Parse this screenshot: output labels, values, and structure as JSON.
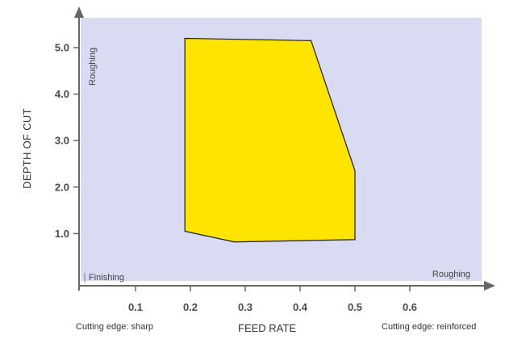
{
  "chart_data": {
    "type": "area",
    "xlabel": "FEED RATE",
    "ylabel": "DEPTH OF CUT",
    "xlim": [
      0.0,
      0.66
    ],
    "ylim": [
      0.0,
      5.6
    ],
    "x_ticks": [
      0.1,
      0.2,
      0.3,
      0.4,
      0.5,
      0.6
    ],
    "x_tick_labels": [
      "0.1",
      "0.2",
      "0.3",
      "0.4",
      "0.5",
      "0.6"
    ],
    "y_ticks": [
      1.0,
      2.0,
      3.0,
      4.0,
      5.0
    ],
    "y_tick_labels": [
      "1.0",
      "2.0",
      "3.0",
      "4.0",
      "5.0"
    ],
    "region": {
      "fill": "#ffe400",
      "stroke": "#1a1a1a",
      "points": [
        {
          "x": 0.19,
          "y": 5.2
        },
        {
          "x": 0.42,
          "y": 5.15
        },
        {
          "x": 0.5,
          "y": 2.35
        },
        {
          "x": 0.5,
          "y": 0.87
        },
        {
          "x": 0.28,
          "y": 0.82
        },
        {
          "x": 0.19,
          "y": 1.05
        }
      ]
    },
    "annotations": {
      "top_left": "Roughing",
      "bottom_left": "Finishing",
      "bottom_right": "Roughing"
    },
    "captions": {
      "left": "Cutting edge: sharp",
      "center": "FEED RATE",
      "right": "Cutting edge: reinforced"
    },
    "colors": {
      "plot_background": "#d9dbf3",
      "axis": "#666666"
    },
    "grid": false
  }
}
